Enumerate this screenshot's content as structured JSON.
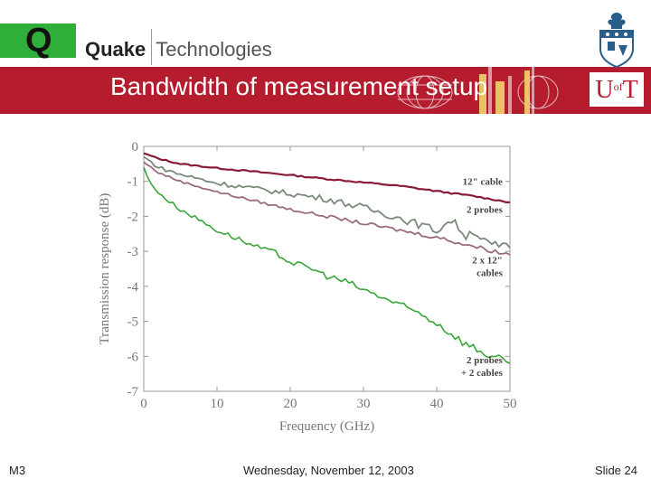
{
  "header": {
    "brand_bold": "Quake",
    "brand_light": "Technologies",
    "title": "Bandwidth of measurement setup",
    "ut_logo_text": "U of T",
    "icons": [
      "quake-q-logo-icon",
      "university-crest-icon"
    ]
  },
  "colors": {
    "band": "#b51c2e",
    "quake_green": "#2fae3a",
    "series_dark_red": "#8b1a38",
    "series_gray": "#7a8a7a",
    "series_mauve": "#9a6a80",
    "series_green": "#3aa63a"
  },
  "chart_data": {
    "type": "line",
    "title": "",
    "xlabel": "Frequency (GHz)",
    "ylabel": "Transmission response (dB)",
    "xlim": [
      0,
      50
    ],
    "ylim": [
      -7,
      0
    ],
    "xticks": [
      "0",
      "10",
      "20",
      "30",
      "40",
      "50"
    ],
    "yticks": [
      "0",
      "-1",
      "-2",
      "-3",
      "-4",
      "-5",
      "-6",
      "-7"
    ],
    "grid": false,
    "series": [
      {
        "name": "12\" cable",
        "x": [
          0,
          2,
          5,
          10,
          15,
          20,
          25,
          30,
          35,
          40,
          45,
          50
        ],
        "y": [
          -0.2,
          -0.35,
          -0.5,
          -0.62,
          -0.72,
          -0.82,
          -0.93,
          -1.03,
          -1.13,
          -1.28,
          -1.42,
          -1.6
        ]
      },
      {
        "name": "2 probes",
        "x": [
          0,
          2,
          5,
          10,
          15,
          20,
          25,
          30,
          35,
          40,
          42,
          44,
          45,
          47,
          50
        ],
        "y": [
          -0.3,
          -0.6,
          -0.8,
          -1.05,
          -1.2,
          -1.35,
          -1.5,
          -1.75,
          -2.05,
          -2.4,
          -2.1,
          -2.55,
          -2.4,
          -2.8,
          -2.9
        ]
      },
      {
        "name": "2 x 12\" cables",
        "x": [
          0,
          2,
          5,
          10,
          15,
          20,
          25,
          30,
          35,
          40,
          45,
          50
        ],
        "y": [
          -0.45,
          -0.75,
          -1.0,
          -1.3,
          -1.55,
          -1.8,
          -2.0,
          -2.2,
          -2.4,
          -2.6,
          -2.85,
          -3.1
        ]
      },
      {
        "name": "2 probes + 2 cables",
        "x": [
          0,
          1,
          3,
          5,
          8,
          10,
          13,
          15,
          18,
          20,
          23,
          25,
          28,
          30,
          33,
          35,
          38,
          40,
          42,
          44,
          46,
          48,
          50
        ],
        "y": [
          -0.6,
          -1.1,
          -1.5,
          -1.8,
          -2.15,
          -2.4,
          -2.65,
          -2.85,
          -3.05,
          -3.3,
          -3.5,
          -3.7,
          -3.9,
          -4.1,
          -4.35,
          -4.55,
          -4.8,
          -5.05,
          -5.35,
          -5.65,
          -5.85,
          -6.05,
          -6.2
        ]
      }
    ],
    "annotations": [
      {
        "lines": [
          "12\" cable"
        ],
        "x": 49,
        "y": -1.1
      },
      {
        "lines": [
          "2 probes"
        ],
        "x": 49,
        "y": -1.9
      },
      {
        "lines": [
          "2 x 12\"",
          "cables"
        ],
        "x": 49,
        "y": -3.35
      },
      {
        "lines": [
          "2 probes",
          "+ 2 cables"
        ],
        "x": 49,
        "y": -6.2
      }
    ]
  },
  "footer": {
    "left": "M3",
    "center": "Wednesday, November 12, 2003",
    "right": "Slide 24"
  }
}
